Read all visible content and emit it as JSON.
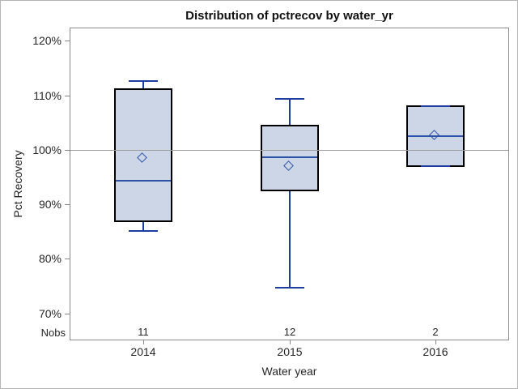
{
  "page": {
    "background": "#ffffff",
    "border_color": "#b4b4b4"
  },
  "chart_data": {
    "type": "boxplot",
    "title": "Distribution of pctrecov by water_yr",
    "xlabel": "Water year",
    "ylabel": "Pct Recovery",
    "nobs_label": "Nobs",
    "y_axis": {
      "min": 65.2,
      "max": 122.3,
      "ticks": [
        120,
        110,
        100,
        90,
        80,
        70
      ],
      "tick_suffix": "%"
    },
    "reference_line": 100,
    "grid": "off",
    "legend": "none",
    "categories": [
      "2014",
      "2015",
      "2016"
    ],
    "series": [
      {
        "category": "2014",
        "nobs": "11",
        "whisker_low": 85.1,
        "q1": 86.8,
        "median": 94.3,
        "q3": 111.1,
        "whisker_high": 112.6,
        "mean": 98.4
      },
      {
        "category": "2015",
        "nobs": "12",
        "whisker_low": 74.7,
        "q1": 92.6,
        "median": 98.6,
        "q3": 104.5,
        "whisker_high": 109.4,
        "mean": 96.9
      },
      {
        "category": "2016",
        "nobs": "2",
        "whisker_low": 97.0,
        "q1": 97.0,
        "median": 102.5,
        "q3": 108.0,
        "whisker_high": 108.0,
        "mean": 102.5
      }
    ],
    "colors": {
      "box_fill": "#ccd6e6",
      "box_border": "#000000",
      "whisker": "#1f3da0",
      "median": "#2d53a8",
      "mean_marker": "#2d53a8",
      "reference_line": "#9d9d9d",
      "frame": "#8a8a8a",
      "text": "#262626"
    }
  }
}
